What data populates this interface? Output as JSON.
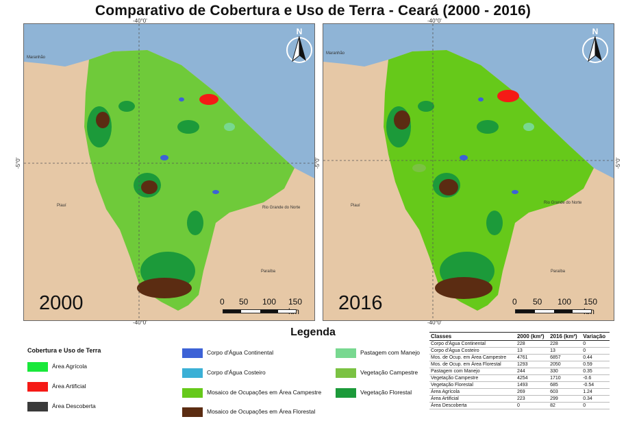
{
  "title": "Comparativo de Cobertura e Uso de Terra - Ceará (2000 - 2016)",
  "maps": [
    {
      "year": "2000",
      "coord_top": "-40°0'",
      "coord_left": "-5°0'",
      "coord_bottom": "-40°0'",
      "places": {
        "maranhao": "Maranhão",
        "piaui": "Piauí",
        "rgn": "Rio Grande do Norte",
        "paraiba": "Paraíba"
      },
      "north_label": "N",
      "scale": {
        "l0": "0",
        "l1": "50",
        "l2": "100",
        "l3": "150 km"
      }
    },
    {
      "year": "2016",
      "coord_top": "-40°0'",
      "coord_left": "-5°0'",
      "coord_right": "-5°0'",
      "coord_bottom": "-40°0'",
      "places": {
        "maranhao": "Maranhão",
        "piaui": "Piauí",
        "rgn": "Rio Grande do Norte",
        "paraiba": "Paraíba"
      },
      "north_label": "N",
      "scale": {
        "l0": "0",
        "l1": "50",
        "l2": "100",
        "l3": "150 km"
      }
    }
  ],
  "legend": {
    "title": "Legenda",
    "subtitle": "Cobertura e Uso de Terra",
    "items": [
      {
        "label": "Área Agrícola",
        "color": "#19e83a"
      },
      {
        "label": "Área Artificial",
        "color": "#f51a16"
      },
      {
        "label": "Área Descoberta",
        "color": "#3a3a3a"
      },
      {
        "label": "Corpo d'Água Continental",
        "color": "#3d62d6"
      },
      {
        "label": "Corpo d'Água Costeiro",
        "color": "#3bb0d6"
      },
      {
        "label": "Mosaico de Ocupações em Área Campestre",
        "color": "#66c91a"
      },
      {
        "label": "Mosaico de Ocupações em Área Florestal",
        "color": "#5b2c12"
      },
      {
        "label": "Pastagem com Manejo",
        "color": "#78d890"
      },
      {
        "label": "Vegetação Campestre",
        "color": "#7bc243"
      },
      {
        "label": "Vegetação Florestal",
        "color": "#1c9a3a"
      }
    ]
  },
  "table": {
    "headers": [
      "Classes",
      "2000 (km²)",
      "2016 (km²)",
      "Variação"
    ],
    "rows": [
      [
        "Corpo d'Água Continental",
        "228",
        "228",
        "0"
      ],
      [
        "Corpo d'Água Costeiro",
        "13",
        "13",
        "0"
      ],
      [
        "Mos. de Ocup. em Área Campestre",
        "4761",
        "6857",
        "0.44"
      ],
      [
        "Mos. de Ocup. em Área Florestal",
        "1293",
        "2050",
        "0.59"
      ],
      [
        "Pastagem com Manejo",
        "244",
        "330",
        "0.35"
      ],
      [
        "Vegetação Campestre",
        "4254",
        "1710",
        "-0.6"
      ],
      [
        "Vegetação Florestal",
        "1493",
        "685",
        "-0.54"
      ],
      [
        "Área Agrícola",
        "269",
        "603",
        "1.24"
      ],
      [
        "Área Artificial",
        "223",
        "299",
        "0.34"
      ],
      [
        "Área Descoberta",
        "0",
        "82",
        "0"
      ]
    ]
  },
  "colors": {
    "ocean": "#8fb4d6",
    "land_neighbor": "#e6c8a6",
    "state_base": "#6fca3a"
  }
}
